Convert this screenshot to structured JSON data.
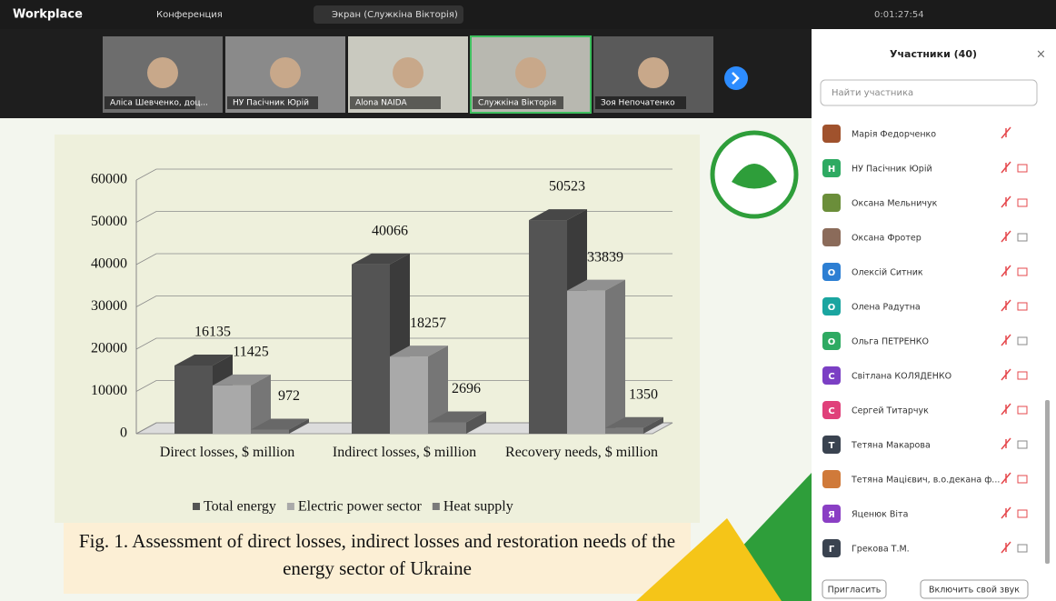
{
  "top_bar": {
    "app": "Workplace",
    "meeting": "Конференция",
    "share": "Экран (Служкіна Вікторія)",
    "timer": "0:01:27:54"
  },
  "video_tiles": [
    {
      "name": "Аліса Шевченко, доц..."
    },
    {
      "name": "НУ Пасічник Юрій"
    },
    {
      "name": "Alona NAIDA"
    },
    {
      "name": "Служкіна Вікторія"
    },
    {
      "name": "Зоя Непочатенко"
    }
  ],
  "chart_data": {
    "type": "bar",
    "title": "Fig. 1. Assessment of direct losses, indirect losses and restoration needs of the energy sector of Ukraine",
    "categories": [
      "Direct losses, $ million",
      "Indirect losses, $ million",
      "Recovery needs, $ million"
    ],
    "series": [
      {
        "name": "Total energy",
        "color": "#545454",
        "values": [
          16135,
          40066,
          50523
        ]
      },
      {
        "name": "Electric power sector",
        "color": "#a9a9a9",
        "values": [
          11425,
          18257,
          33839
        ]
      },
      {
        "name": "Heat supply",
        "color": "#7a7a7a",
        "values": [
          972,
          2696,
          1350
        ]
      }
    ],
    "ylim": [
      0,
      60000
    ],
    "yticks": [
      0,
      10000,
      20000,
      30000,
      40000,
      50000,
      60000
    ],
    "grid": true
  },
  "participants_panel": {
    "title": "Участники (40)",
    "search_placeholder": "Найти участника",
    "participants": [
      {
        "name": "Марія Федорченко",
        "color": "#a0522d"
      },
      {
        "initial": "Н",
        "name": "НУ Пасічник Юрій",
        "color": "#2eaa62"
      },
      {
        "name": "Оксана Мельничук",
        "color": "#6b8e3a"
      },
      {
        "name": "Оксана Фротер",
        "color": "#8b6b5a"
      },
      {
        "initial": "О",
        "name": "Олексій Ситник",
        "color": "#2d7fd3"
      },
      {
        "initial": "О",
        "name": "Олена Радутна",
        "color": "#1aa5a0"
      },
      {
        "initial": "О",
        "name": "Ольга ПЕТРЕНКО",
        "color": "#2eaa62"
      },
      {
        "initial": "С",
        "name": "Світлана КОЛЯДЕНКО",
        "color": "#7b3fc4"
      },
      {
        "initial": "С",
        "name": "Сергей Титарчук",
        "color": "#e0407a"
      },
      {
        "initial": "Т",
        "name": "Тетяна  Макарова",
        "color": "#3a4350"
      },
      {
        "name": "Тетяна Мацієвич, в.о.декана ф...",
        "color": "#d07a3a"
      },
      {
        "initial": "Я",
        "name": "Яценюк Віта",
        "color": "#8a3fc4"
      },
      {
        "initial": "Г",
        "name": "Грекова Т.М.",
        "color": "#3a4350"
      }
    ],
    "buttons": [
      "Пригласить",
      "Включить свой звук"
    ]
  }
}
